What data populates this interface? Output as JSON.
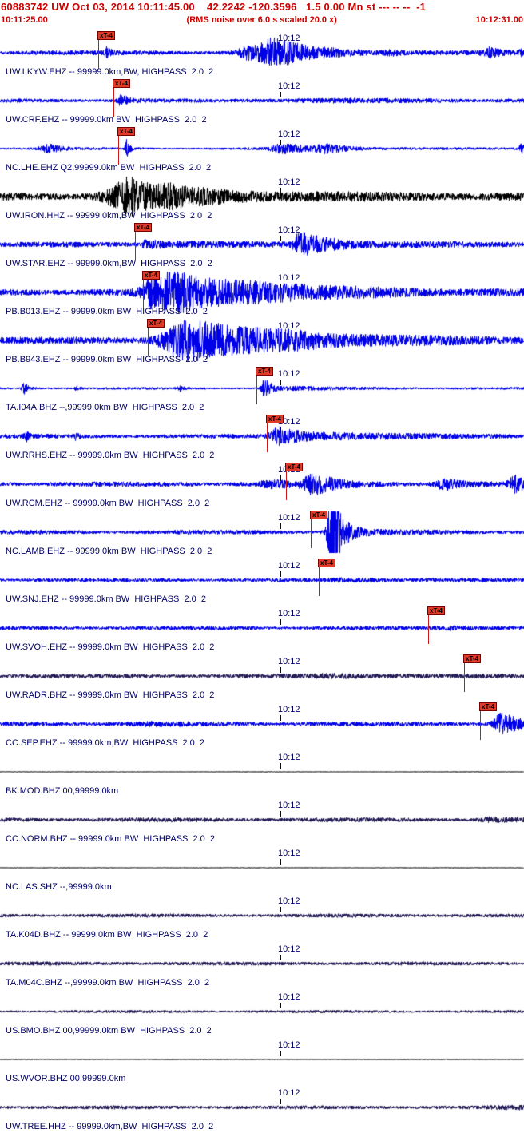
{
  "header": {
    "title": "60883742 UW Oct 03, 2014 10:11:45.00    42.2242 -120.3596   1.5 0.00 Mn st --- -- --  -1",
    "start_time": "10:11:25.00",
    "scale_note": "(RMS noise over 6.0 s scaled 20.0 x)",
    "end_time": "10:12:31.00"
  },
  "minute_label": "10:12",
  "minute_x": 348,
  "flag_label": "xT-4",
  "colors": {
    "blue": "#0000e8",
    "black": "#000000",
    "navy": "#221b55",
    "label": "#000066",
    "header": "#cc0000",
    "flag_bg": "#e03a28",
    "pick_line": "#cc1a1a"
  },
  "traces": [
    {
      "label": "UW.LKYW.EHZ -- 99999.0km,BW, HIGHPASS  2.0  2",
      "color": "blue",
      "noise": 2.4,
      "flag": 122,
      "bursts": [
        {
          "c": 133,
          "r": 3,
          "d": 5,
          "a": 6
        },
        {
          "c": 310,
          "r": 12,
          "d": 20,
          "a": 6
        },
        {
          "c": 345,
          "r": 22,
          "d": 50,
          "a": 16
        },
        {
          "c": 490,
          "r": 10,
          "d": 14,
          "a": 2.5
        },
        {
          "c": 612,
          "r": 7,
          "d": 14,
          "a": 5
        },
        {
          "c": 652,
          "r": 3,
          "d": 3,
          "a": 3
        }
      ]
    },
    {
      "label": "UW.CRF.EHZ -- 99999.0km BW  HIGHPASS  2.0  2",
      "color": "blue",
      "noise": 2.0,
      "flag": 141,
      "bursts": [
        {
          "c": 152,
          "r": 5,
          "d": 10,
          "a": 6.5
        },
        {
          "c": 420,
          "r": 80,
          "d": 160,
          "a": 1.2
        }
      ]
    },
    {
      "label": "NC.LHE.EHZ Q2,99999.0km BW  HIGHPASS  2.0  2",
      "color": "blue",
      "noise": 1.2,
      "flag": 147,
      "bursts": [
        {
          "c": 62,
          "r": 12,
          "d": 16,
          "a": 5
        },
        {
          "c": 158,
          "r": 2,
          "d": 4,
          "a": 11
        },
        {
          "c": 352,
          "r": 14,
          "d": 55,
          "a": 5.5
        },
        {
          "c": 408,
          "r": 12,
          "d": 22,
          "a": 4
        },
        {
          "c": 653,
          "r": 4,
          "d": 4,
          "a": 5.5
        }
      ]
    },
    {
      "label": "UW.IRON.HHZ -- 99999.0km,BW  HIGHPASS  2.0  2",
      "color": "black",
      "noise": 4.0,
      "flag": null,
      "bursts": [
        {
          "c": 165,
          "r": 28,
          "d": 40,
          "a": 22
        },
        {
          "c": 210,
          "r": 12,
          "d": 160,
          "a": 6
        }
      ]
    },
    {
      "label": "UW.STAR.EHZ -- 99999.0km,BW  HIGHPASS  2.0  2",
      "color": "blue",
      "noise": 2.8,
      "flag": 168,
      "bursts": [
        {
          "c": 182,
          "r": 5,
          "d": 70,
          "a": 4
        },
        {
          "c": 376,
          "r": 8,
          "d": 22,
          "a": 15
        },
        {
          "c": 410,
          "r": 20,
          "d": 90,
          "a": 3.5
        }
      ]
    },
    {
      "label": "PB.B013.EHZ -- 99999.0km BW  HIGHPASS  2.0  2",
      "color": "blue",
      "noise": 3.6,
      "flag": 178,
      "bursts": [
        {
          "c": 188,
          "r": 9,
          "d": 30,
          "a": 10
        },
        {
          "c": 220,
          "r": 30,
          "d": 90,
          "a": 21
        },
        {
          "c": 320,
          "r": 50,
          "d": 140,
          "a": 5
        }
      ]
    },
    {
      "label": "PB.B943.EHZ -- 99999.0km BW  HIGHPASS  2.0  2",
      "color": "blue",
      "noise": 3.6,
      "flag": 184,
      "bursts": [
        {
          "c": 238,
          "r": 32,
          "d": 85,
          "a": 25
        },
        {
          "c": 360,
          "r": 60,
          "d": 150,
          "a": 5
        }
      ]
    },
    {
      "label": "TA.I04A.BHZ --,99999.0km BW  HIGHPASS  2.0  2",
      "color": "blue",
      "noise": 1.2,
      "flag": 320,
      "bursts": [
        {
          "c": 30,
          "r": 3,
          "d": 6,
          "a": 7
        },
        {
          "c": 95,
          "r": 2,
          "d": 4,
          "a": 3
        },
        {
          "c": 225,
          "r": 3,
          "d": 5,
          "a": 3.5
        },
        {
          "c": 331,
          "r": 4,
          "d": 9,
          "a": 13
        },
        {
          "c": 365,
          "r": 12,
          "d": 70,
          "a": 1.8
        }
      ]
    },
    {
      "label": "UW.RRHS.EHZ -- 99999.0km BW  HIGHPASS  2.0  2",
      "color": "blue",
      "noise": 2.2,
      "flag": 333,
      "bursts": [
        {
          "c": 33,
          "r": 3,
          "d": 5,
          "a": 5
        },
        {
          "c": 95,
          "r": 2,
          "d": 4,
          "a": 4
        },
        {
          "c": 350,
          "r": 11,
          "d": 28,
          "a": 11
        },
        {
          "c": 420,
          "r": 40,
          "d": 160,
          "a": 2.5
        }
      ]
    },
    {
      "label": "UW.RCM.EHZ -- 99999.0km BW  HIGHPASS  2.0  2",
      "color": "blue",
      "noise": 2.6,
      "flag": 357,
      "bursts": [
        {
          "c": 340,
          "r": 14,
          "d": 25,
          "a": 4
        },
        {
          "c": 392,
          "r": 12,
          "d": 28,
          "a": 12
        },
        {
          "c": 560,
          "r": 14,
          "d": 18,
          "a": 6.5
        },
        {
          "c": 645,
          "r": 8,
          "d": 12,
          "a": 9
        }
      ]
    },
    {
      "label": "NC.LAMB.EHZ -- 99999.0km BW  HIGHPASS  2.0  2",
      "color": "blue",
      "noise": 2.2,
      "flag": 388,
      "bursts": [
        {
          "c": 418,
          "r": 7,
          "d": 9,
          "a": 70
        },
        {
          "c": 445,
          "r": 10,
          "d": 60,
          "a": 2.5
        }
      ]
    },
    {
      "label": "UW.SNJ.EHZ -- 99999.0km BW  HIGHPASS  2.0  2",
      "color": "blue",
      "noise": 1.9,
      "flag": 398,
      "bursts": [
        {
          "c": 430,
          "r": 20,
          "d": 90,
          "a": 1.2
        }
      ]
    },
    {
      "label": "UW.SVOH.EHZ -- 99999.0km BW  HIGHPASS  2.0  2",
      "color": "blue",
      "noise": 2.0,
      "flag": 535,
      "bursts": [
        {
          "c": 560,
          "r": 15,
          "d": 60,
          "a": 1.4
        }
      ]
    },
    {
      "label": "UW.RADR.BHZ -- 99999.0km BW  HIGHPASS  2.0  2",
      "color": "navy",
      "noise": 2.2,
      "flag": 580,
      "bursts": [
        {
          "c": 430,
          "r": 50,
          "d": 90,
          "a": 1.4
        }
      ]
    },
    {
      "label": "CC.SEP.EHZ -- 99999.0km,BW  HIGHPASS  2.0  2",
      "color": "blue",
      "noise": 2.3,
      "flag": 600,
      "bursts": [
        {
          "c": 190,
          "r": 25,
          "d": 50,
          "a": 1
        },
        {
          "c": 628,
          "r": 9,
          "d": 22,
          "a": 14
        }
      ]
    },
    {
      "label": "BK.MOD.BHZ 00,99999.0km",
      "color": "black",
      "noise": 0.25,
      "flag": null,
      "bursts": []
    },
    {
      "label": "CC.NORM.BHZ -- 99999.0km BW  HIGHPASS  2.0  2",
      "color": "navy",
      "noise": 2.2,
      "flag": null,
      "bursts": [
        {
          "c": 612,
          "r": 10,
          "d": 30,
          "a": 2.2
        }
      ]
    },
    {
      "label": "NC.LAS.SHZ --,99999.0km",
      "color": "black",
      "noise": 0.25,
      "flag": null,
      "bursts": []
    },
    {
      "label": "TA.K04D.BHZ -- 99999.0km BW  HIGHPASS  2.0  2",
      "color": "navy",
      "noise": 1.9,
      "flag": null,
      "bursts": []
    },
    {
      "label": "TA.M04C.BHZ --,99999.0km BW  HIGHPASS  2.0  2",
      "color": "navy",
      "noise": 1.9,
      "flag": null,
      "bursts": []
    },
    {
      "label": "US.BMO.BHZ 00,99999.0km BW  HIGHPASS  2.0  2",
      "color": "navy",
      "noise": 1.4,
      "flag": null,
      "bursts": []
    },
    {
      "label": "US.WVOR.BHZ 00,99999.0km",
      "color": "black",
      "noise": 0.25,
      "flag": null,
      "bursts": []
    },
    {
      "label": "UW.TREE.HHZ -- 99999.0km,BW  HIGHPASS  2.0  2",
      "color": "navy",
      "noise": 1.9,
      "flag": null,
      "bursts": [
        {
          "c": 645,
          "r": 25,
          "d": 30,
          "a": 1.2
        }
      ]
    }
  ]
}
